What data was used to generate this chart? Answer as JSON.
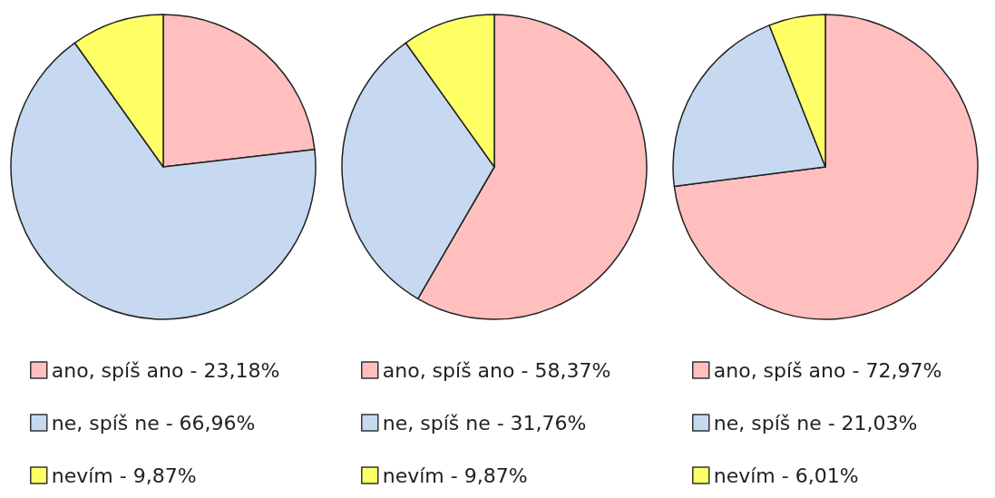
{
  "chart_data": [
    {
      "type": "pie",
      "categories": [
        "ano, spíš ano",
        "ne, spíš ne",
        "nevím"
      ],
      "values": [
        23.18,
        66.96,
        9.87
      ],
      "value_labels": [
        "23,18%",
        "66,96%",
        "9,87%"
      ],
      "colors": [
        "#ffbfbf",
        "#c6d9f1",
        "#ffff66"
      ],
      "legend": "bottom"
    },
    {
      "type": "pie",
      "categories": [
        "ano, spíš ano",
        "ne, spíš ne",
        "nevím"
      ],
      "values": [
        58.37,
        31.76,
        9.87
      ],
      "value_labels": [
        "58,37%",
        "31,76%",
        "9,87%"
      ],
      "colors": [
        "#ffbfbf",
        "#c6d9f1",
        "#ffff66"
      ],
      "legend": "bottom"
    },
    {
      "type": "pie",
      "categories": [
        "ano, spíš ano",
        "ne, spíš ne",
        "nevím"
      ],
      "values": [
        72.97,
        21.03,
        6.01
      ],
      "value_labels": [
        "72,97%",
        "21,03%",
        "6,01%"
      ],
      "colors": [
        "#ffbfbf",
        "#c6d9f1",
        "#ffff66"
      ],
      "legend": "bottom"
    }
  ]
}
